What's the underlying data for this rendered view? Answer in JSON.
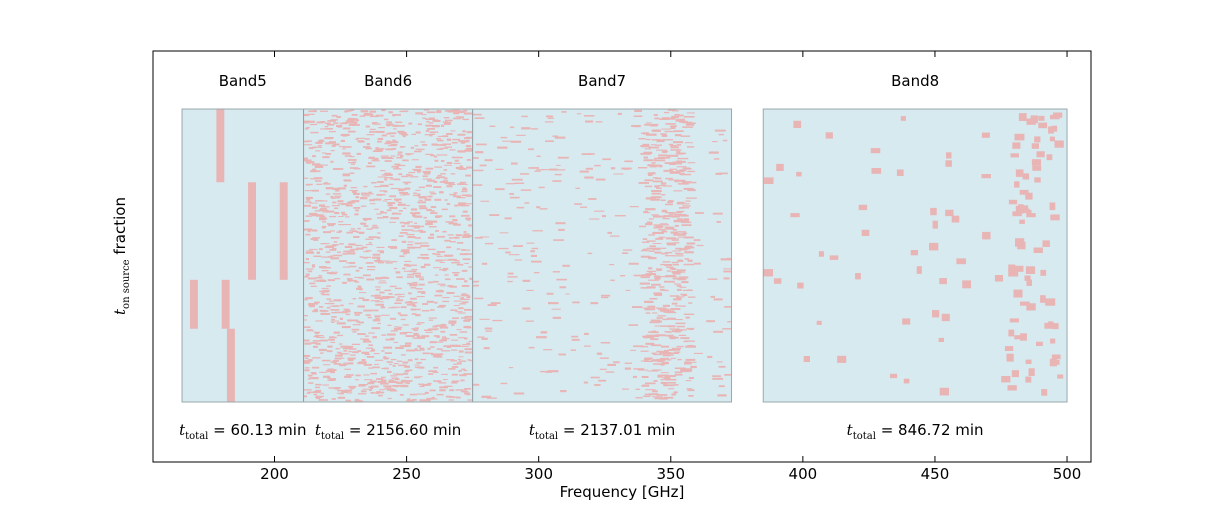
{
  "chart_data": {
    "type": "heatmap",
    "xlabel": "Frequency [GHz]",
    "ylabel": {
      "symbol": "t",
      "subscript": "on source",
      "suffix": " fraction"
    },
    "xlim": [
      155,
      510
    ],
    "xticks": [
      200,
      250,
      300,
      350,
      400,
      450,
      500
    ],
    "grid": false,
    "colors": {
      "background": "#d6eaf0",
      "mark": "#e9b4b4",
      "border": "#9aa8ad",
      "divider": "#8f9a9e"
    },
    "panels": [
      {
        "bands": [
          {
            "name": "Band5",
            "range": [
              165,
              211
            ],
            "t_total_min": "60.13"
          },
          {
            "name": "Band6",
            "range": [
              211,
              275
            ],
            "t_total_min": "2156.60"
          },
          {
            "name": "Band7",
            "range": [
              275,
              373
            ],
            "t_total_min": "2137.01"
          }
        ]
      },
      {
        "bands": [
          {
            "name": "Band8",
            "range": [
              385,
              500
            ],
            "t_total_min": "846.72"
          }
        ]
      }
    ],
    "band5_segments": [
      {
        "x": [
          178,
          181
        ],
        "y": [
          0.75,
          1.0
        ]
      },
      {
        "x": [
          190,
          193
        ],
        "y": [
          0.417,
          0.75
        ]
      },
      {
        "x": [
          202,
          205
        ],
        "y": [
          0.417,
          0.75
        ]
      },
      {
        "x": [
          168,
          171
        ],
        "y": [
          0.25,
          0.417
        ]
      },
      {
        "x": [
          180,
          183
        ],
        "y": [
          0.25,
          0.417
        ]
      },
      {
        "x": [
          182,
          185
        ],
        "y": [
          0.0,
          0.25
        ]
      }
    ],
    "ttotal_label": {
      "symbol": "t",
      "subscript": "total",
      "unit": "min"
    }
  }
}
